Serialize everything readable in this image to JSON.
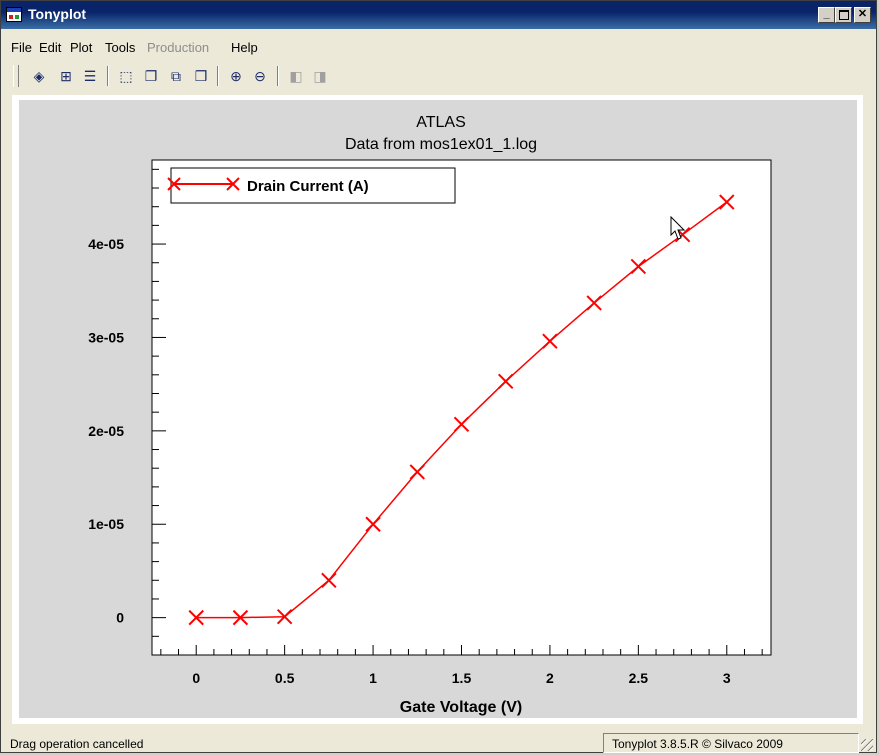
{
  "window": {
    "title": "Tonyplot"
  },
  "menu": [
    "File",
    "Edit",
    "Plot",
    "Tools",
    "Production",
    "Help"
  ],
  "menu_disabled": [
    "Production"
  ],
  "toolbar": {
    "buttons": [
      "load-icon",
      "import-icon",
      "print-icon",
      "select-icon",
      "overlay-icon",
      "new-window-icon",
      "window-stack-icon",
      "zoom-in-icon",
      "zoom-out-icon",
      "prev-page-icon",
      "next-page-icon"
    ],
    "disabled": [
      "prev-page-icon",
      "next-page-icon"
    ]
  },
  "chart_data": {
    "type": "line",
    "title": "ATLAS",
    "subtitle": "Data from mos1ex01_1.log",
    "xlabel": "Gate Voltage (V)",
    "ylabel": "",
    "xlim": [
      -0.25,
      3.25
    ],
    "ylim": [
      -4e-06,
      4.9e-05
    ],
    "x_ticks": [
      0,
      0.5,
      1,
      1.5,
      2,
      2.5,
      3
    ],
    "x_tick_labels": [
      "0",
      "0.5",
      "1",
      "1.5",
      "2",
      "2.5",
      "3"
    ],
    "y_ticks": [
      0,
      1e-05,
      2e-05,
      3e-05,
      4e-05
    ],
    "y_tick_labels": [
      "0",
      "1e-05",
      "2e-05",
      "3e-05",
      "4e-05"
    ],
    "legend_position": "top-left",
    "grid": false,
    "series": [
      {
        "name": "Drain Current (A)",
        "color": "#ff0000",
        "marker": "x",
        "x": [
          0,
          0.25,
          0.5,
          0.75,
          1,
          1.25,
          1.5,
          1.75,
          2,
          2.25,
          2.5,
          2.75,
          3
        ],
        "values": [
          0,
          0,
          1e-07,
          4e-06,
          1e-05,
          1.56e-05,
          2.07e-05,
          2.53e-05,
          2.96e-05,
          3.37e-05,
          3.76e-05,
          4.1e-05,
          4.45e-05
        ]
      }
    ]
  },
  "status": {
    "message": "Drag operation cancelled",
    "version": "Tonyplot 3.8.5.R © Silvaco 2009"
  }
}
